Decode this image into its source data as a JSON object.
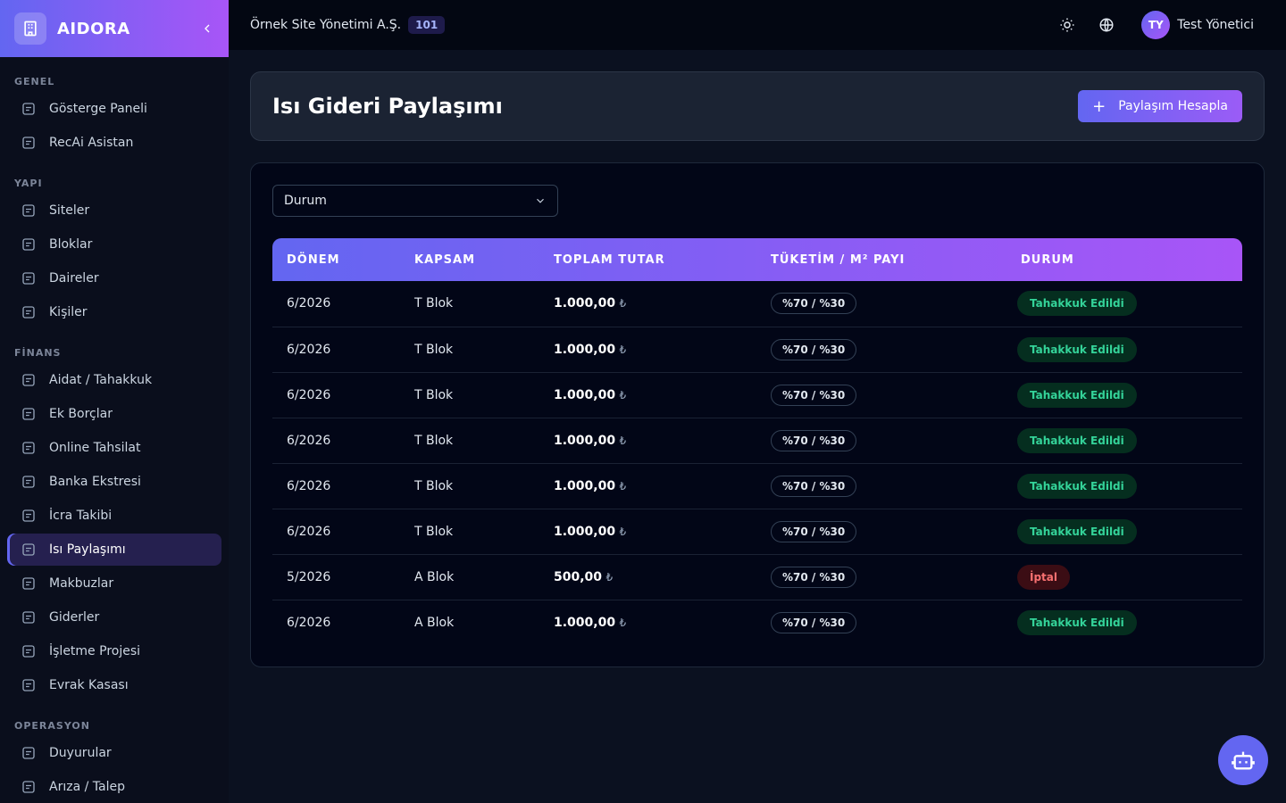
{
  "sidebar": {
    "brand": "AIDORA",
    "sections": [
      {
        "title": "GENEL",
        "items": [
          {
            "label": "Gösterge Paneli"
          },
          {
            "label": "RecAi Asistan"
          }
        ]
      },
      {
        "title": "YAPI",
        "items": [
          {
            "label": "Siteler"
          },
          {
            "label": "Bloklar"
          },
          {
            "label": "Daireler"
          },
          {
            "label": "Kişiler"
          }
        ]
      },
      {
        "title": "FİNANS",
        "items": [
          {
            "label": "Aidat / Tahakkuk"
          },
          {
            "label": "Ek Borçlar"
          },
          {
            "label": "Online Tahsilat"
          },
          {
            "label": "Banka Ekstresi"
          },
          {
            "label": "İcra Takibi"
          },
          {
            "label": "Isı Paylaşımı",
            "active": true
          },
          {
            "label": "Makbuzlar"
          },
          {
            "label": "Giderler"
          },
          {
            "label": "İşletme Projesi"
          },
          {
            "label": "Evrak Kasası"
          }
        ]
      },
      {
        "title": "OPERASYON",
        "items": [
          {
            "label": "Duyurular"
          },
          {
            "label": "Arıza / Talep"
          }
        ]
      }
    ]
  },
  "topbar": {
    "organization": "Örnek Site Yönetimi A.Ş.",
    "badge": "101",
    "avatar": "TY",
    "user": "Test Yönetici"
  },
  "header": {
    "title": "Isı Gideri Paylaşımı",
    "button": "Paylaşım Hesapla"
  },
  "filter": {
    "placeholder": "Durum"
  },
  "table": {
    "columns": [
      "DÖNEM",
      "KAPSAM",
      "TOPLAM TUTAR",
      "TÜKETİM / M² PAYI",
      "DURUM"
    ],
    "rows": [
      {
        "period": "6/2026",
        "scope": "T Blok",
        "amount": "1.000,00",
        "currency": "₺",
        "ratio": "%70 / %30",
        "status": "Tahakkuk Edildi",
        "tone": "success"
      },
      {
        "period": "6/2026",
        "scope": "T Blok",
        "amount": "1.000,00",
        "currency": "₺",
        "ratio": "%70 / %30",
        "status": "Tahakkuk Edildi",
        "tone": "success"
      },
      {
        "period": "6/2026",
        "scope": "T Blok",
        "amount": "1.000,00",
        "currency": "₺",
        "ratio": "%70 / %30",
        "status": "Tahakkuk Edildi",
        "tone": "success"
      },
      {
        "period": "6/2026",
        "scope": "T Blok",
        "amount": "1.000,00",
        "currency": "₺",
        "ratio": "%70 / %30",
        "status": "Tahakkuk Edildi",
        "tone": "success"
      },
      {
        "period": "6/2026",
        "scope": "T Blok",
        "amount": "1.000,00",
        "currency": "₺",
        "ratio": "%70 / %30",
        "status": "Tahakkuk Edildi",
        "tone": "success"
      },
      {
        "period": "6/2026",
        "scope": "T Blok",
        "amount": "1.000,00",
        "currency": "₺",
        "ratio": "%70 / %30",
        "status": "Tahakkuk Edildi",
        "tone": "success"
      },
      {
        "period": "5/2026",
        "scope": "A Blok",
        "amount": "500,00",
        "currency": "₺",
        "ratio": "%70 / %30",
        "status": "İptal",
        "tone": "danger"
      },
      {
        "period": "6/2026",
        "scope": "A Blok",
        "amount": "1.000,00",
        "currency": "₺",
        "ratio": "%70 / %30",
        "status": "Tahakkuk Edildi",
        "tone": "success"
      }
    ]
  }
}
